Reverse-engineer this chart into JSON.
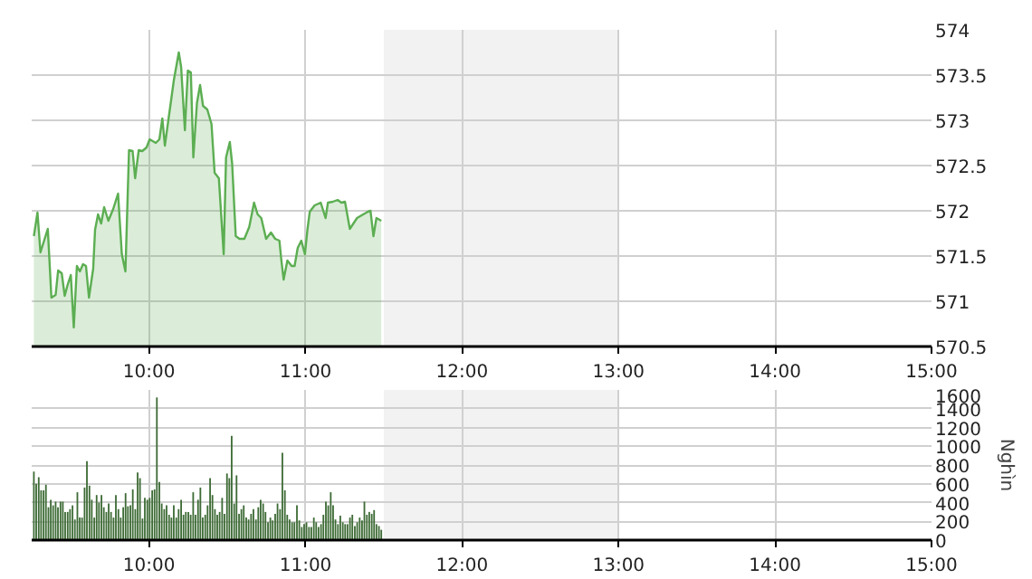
{
  "chart_data": [
    {
      "type": "area",
      "x": [
        9.264,
        9.287,
        9.306,
        9.353,
        9.376,
        9.403,
        9.419,
        9.442,
        9.461,
        9.481,
        9.5,
        9.519,
        9.539,
        9.558,
        9.578,
        9.597,
        9.616,
        9.643,
        9.655,
        9.674,
        9.694,
        9.713,
        9.74,
        9.771,
        9.802,
        9.826,
        9.849,
        9.872,
        9.895,
        9.911,
        9.934,
        9.957,
        9.984,
        10.004,
        10.043,
        10.066,
        10.085,
        10.101,
        10.128,
        10.159,
        10.19,
        10.205,
        10.229,
        10.248,
        10.267,
        10.283,
        10.306,
        10.326,
        10.345,
        10.372,
        10.399,
        10.419,
        10.446,
        10.477,
        10.492,
        10.516,
        10.531,
        10.554,
        10.578,
        10.609,
        10.64,
        10.671,
        10.694,
        10.717,
        10.748,
        10.779,
        10.806,
        10.833,
        10.845,
        10.86,
        10.884,
        10.911,
        10.93,
        10.95,
        10.973,
        10.996,
        11.012,
        11.027,
        11.058,
        11.097,
        11.128,
        11.143,
        11.174,
        11.205,
        11.229,
        11.252,
        11.283,
        11.306,
        11.329,
        11.368,
        11.399,
        11.415,
        11.434,
        11.453,
        11.484
      ],
      "series": [
        {
          "color": "#5cae52",
          "values": [
            571.72,
            571.98,
            571.54,
            571.8,
            571.04,
            571.07,
            571.34,
            571.31,
            571.06,
            571.19,
            571.29,
            570.71,
            571.39,
            571.33,
            571.41,
            571.39,
            571.04,
            571.36,
            571.79,
            571.96,
            571.86,
            572.04,
            571.89,
            572.02,
            572.19,
            571.52,
            571.33,
            572.67,
            572.66,
            572.36,
            572.67,
            572.66,
            572.7,
            572.79,
            572.75,
            572.79,
            573.02,
            572.72,
            573.06,
            573.45,
            573.75,
            573.59,
            572.89,
            573.55,
            573.53,
            572.59,
            573.19,
            573.39,
            573.16,
            573.12,
            572.96,
            572.42,
            572.36,
            571.52,
            572.59,
            572.76,
            572.52,
            571.72,
            571.69,
            571.69,
            571.82,
            572.09,
            571.96,
            571.92,
            571.69,
            571.76,
            571.69,
            571.67,
            571.46,
            571.24,
            571.45,
            571.39,
            571.39,
            571.59,
            571.67,
            571.52,
            571.79,
            571.99,
            572.06,
            572.09,
            571.92,
            572.09,
            572.1,
            572.12,
            572.09,
            572.1,
            571.8,
            571.86,
            571.92,
            571.96,
            571.99,
            572,
            571.72,
            571.92,
            571.89
          ]
        }
      ],
      "xlim": [
        9.25,
        15
      ],
      "xticks": [
        {
          "value": 10,
          "label": "10:00"
        },
        {
          "value": 11,
          "label": "11:00"
        },
        {
          "value": 12,
          "label": "12:00"
        },
        {
          "value": 13,
          "label": "13:00"
        },
        {
          "value": 14,
          "label": "14:00"
        },
        {
          "value": 15,
          "label": "15:00"
        }
      ],
      "ylim": [
        570.5,
        574
      ],
      "yticks": [
        570.5,
        571,
        571.5,
        572,
        572.5,
        573,
        573.5,
        574
      ],
      "bands": [
        {
          "axis": "x",
          "from": 11.5,
          "to": 13,
          "color": "#f2f2f2"
        }
      ],
      "grid": true,
      "marker": "none",
      "line_style": "solid"
    },
    {
      "type": "bar",
      "ylabel": "Nghìn",
      "x": [
        9.264,
        9.279,
        9.295,
        9.31,
        9.326,
        9.341,
        9.357,
        9.372,
        9.387,
        9.403,
        9.418,
        9.434,
        9.449,
        9.464,
        9.48,
        9.495,
        9.511,
        9.526,
        9.542,
        9.557,
        9.572,
        9.588,
        9.603,
        9.619,
        9.634,
        9.65,
        9.665,
        9.68,
        9.696,
        9.711,
        9.727,
        9.742,
        9.757,
        9.773,
        9.788,
        9.804,
        9.819,
        9.835,
        9.85,
        9.865,
        9.881,
        9.896,
        9.912,
        9.927,
        9.942,
        9.958,
        9.973,
        9.989,
        10.004,
        10.02,
        10.035,
        10.05,
        10.066,
        10.081,
        10.097,
        10.112,
        10.128,
        10.143,
        10.158,
        10.174,
        10.189,
        10.205,
        10.22,
        10.235,
        10.251,
        10.266,
        10.282,
        10.297,
        10.313,
        10.328,
        10.343,
        10.359,
        10.374,
        10.39,
        10.405,
        10.421,
        10.436,
        10.451,
        10.467,
        10.482,
        10.498,
        10.513,
        10.528,
        10.544,
        10.559,
        10.575,
        10.59,
        10.605,
        10.621,
        10.636,
        10.652,
        10.667,
        10.683,
        10.698,
        10.713,
        10.729,
        10.744,
        10.76,
        10.775,
        10.79,
        10.806,
        10.821,
        10.837,
        10.852,
        10.868,
        10.883,
        10.898,
        10.914,
        10.929,
        10.945,
        10.96,
        10.976,
        10.991,
        11.006,
        11.022,
        11.037,
        11.053,
        11.068,
        11.083,
        11.099,
        11.114,
        11.13,
        11.145,
        11.161,
        11.176,
        11.191,
        11.207,
        11.222,
        11.238,
        11.253,
        11.268,
        11.284,
        11.299,
        11.315,
        11.33,
        11.346,
        11.361,
        11.376,
        11.392,
        11.407,
        11.423,
        11.438,
        11.453,
        11.469,
        11.484
      ],
      "series": [
        {
          "color": "#3d6b35",
          "values": [
            730,
            600,
            670,
            530,
            530,
            590,
            350,
            430,
            370,
            410,
            350,
            410,
            410,
            300,
            300,
            330,
            370,
            220,
            510,
            240,
            240,
            560,
            840,
            580,
            430,
            240,
            480,
            400,
            480,
            350,
            300,
            390,
            300,
            240,
            480,
            330,
            240,
            350,
            500,
            360,
            370,
            540,
            330,
            720,
            660,
            230,
            450,
            430,
            450,
            530,
            540,
            1520,
            620,
            390,
            330,
            370,
            270,
            240,
            370,
            240,
            330,
            430,
            270,
            300,
            300,
            270,
            510,
            270,
            430,
            560,
            240,
            270,
            370,
            660,
            480,
            330,
            270,
            300,
            450,
            280,
            710,
            660,
            1110,
            390,
            690,
            280,
            330,
            370,
            240,
            220,
            280,
            330,
            220,
            350,
            430,
            390,
            300,
            190,
            240,
            210,
            280,
            390,
            330,
            930,
            530,
            270,
            220,
            190,
            190,
            370,
            210,
            140,
            170,
            190,
            140,
            140,
            240,
            190,
            140,
            170,
            270,
            410,
            370,
            510,
            370,
            220,
            170,
            260,
            190,
            170,
            170,
            240,
            270,
            150,
            190,
            240,
            210,
            410,
            270,
            300,
            280,
            320,
            170,
            150,
            110
          ]
        }
      ],
      "xlim": [
        9.25,
        15
      ],
      "xticks": [
        {
          "value": 10,
          "label": "10:00"
        },
        {
          "value": 11,
          "label": "11:00"
        },
        {
          "value": 12,
          "label": "12:00"
        },
        {
          "value": 13,
          "label": "13:00"
        },
        {
          "value": 14,
          "label": "14:00"
        },
        {
          "value": 15,
          "label": "15:00"
        }
      ],
      "ylim": [
        0,
        1600
      ],
      "yticks": [
        0,
        200,
        400,
        600,
        800,
        1000,
        1200,
        1400,
        1600
      ],
      "bands": [
        {
          "axis": "x",
          "from": 11.5,
          "to": 13,
          "color": "#f2f2f2"
        }
      ],
      "grid": true
    }
  ]
}
